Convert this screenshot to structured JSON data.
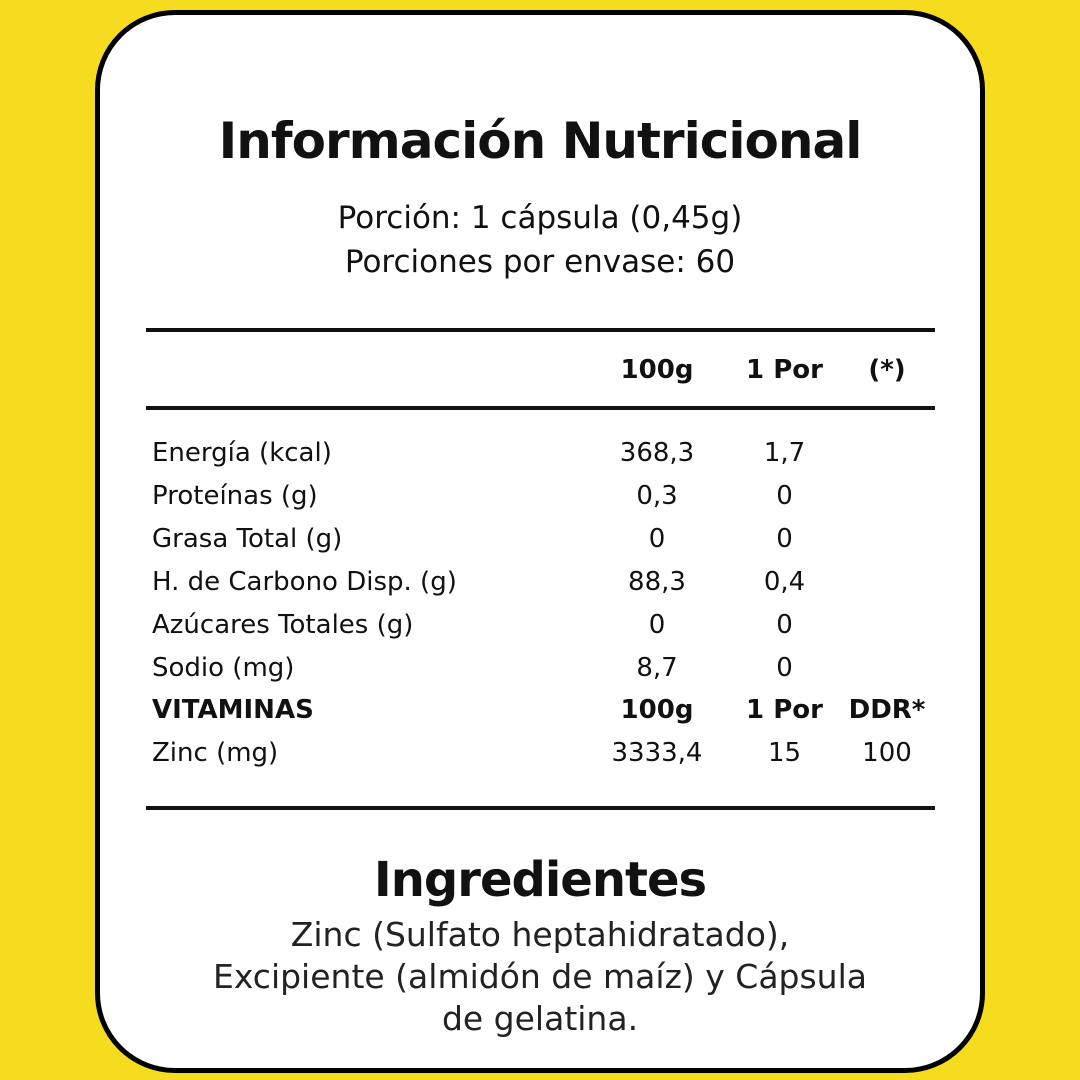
{
  "title": "Información Nutricional",
  "portion": "Porción: 1 cápsula (0,45g)",
  "servings": "Porciones por envase: 60",
  "header": {
    "c1": "100g",
    "c2": "1 Por",
    "c3": "(*)"
  },
  "rows": [
    {
      "label": "Energía (kcal)",
      "v100": "368,3",
      "vpor": "1,7",
      "ddr": ""
    },
    {
      "label": "Proteínas (g)",
      "v100": "0,3",
      "vpor": "0",
      "ddr": ""
    },
    {
      "label": "Grasa Total (g)",
      "v100": "0",
      "vpor": "0",
      "ddr": ""
    },
    {
      "label": "H. de Carbono Disp. (g)",
      "v100": "88,3",
      "vpor": "0,4",
      "ddr": ""
    },
    {
      "label": "Azúcares Totales (g)",
      "v100": "0",
      "vpor": "0",
      "ddr": ""
    },
    {
      "label": "Sodio (mg)",
      "v100": "8,7",
      "vpor": "0",
      "ddr": ""
    }
  ],
  "vitamins": {
    "label": "VITAMINAS",
    "c1": "100g",
    "c2": "1 Por",
    "c3": "DDR*"
  },
  "zinc": {
    "label": "Zinc (mg)",
    "v100": "3333,4",
    "vpor": "15",
    "ddr": "100"
  },
  "ingredients": {
    "title": "Ingredientes",
    "lines": [
      "Zinc (Sulfato heptahidratado),",
      "Excipiente (almidón de maíz) y Cápsula",
      "de gelatina."
    ]
  },
  "colors": {
    "background": "#f5dc1e",
    "card": "#ffffff",
    "border": "#000000"
  }
}
